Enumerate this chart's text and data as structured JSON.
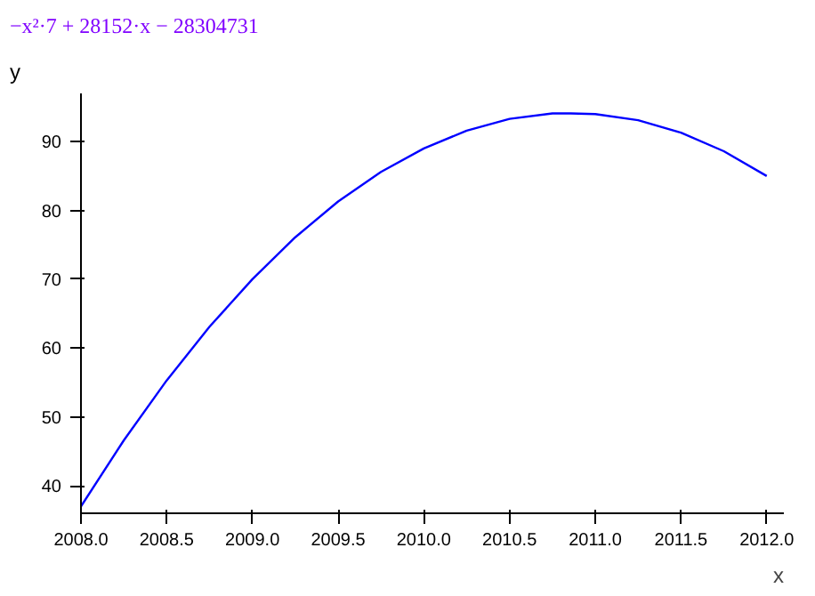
{
  "chart_data": {
    "type": "line",
    "title": "−x²·7 + 28152·x − 28304731",
    "xlabel": "x",
    "ylabel": "y",
    "x": [
      2008,
      2008.25,
      2008.5,
      2008.75,
      2009,
      2009.25,
      2009.5,
      2009.75,
      2010,
      2010.25,
      2010.5,
      2010.75,
      2010.857,
      2011,
      2011.25,
      2011.5,
      2011.75,
      2012
    ],
    "series": [
      {
        "color": "#0000ff",
        "values": [
          37.0,
          46.6,
          55.3,
          63.1,
          70.0,
          76.1,
          81.3,
          85.6,
          89.0,
          91.6,
          93.3,
          94.1,
          94.1,
          94.0,
          93.1,
          91.3,
          88.6,
          85.0
        ]
      }
    ],
    "xlim": [
      2008,
      2012.1
    ],
    "ylim": [
      36,
      97
    ],
    "xticks": [
      {
        "value": 2008,
        "label": "2008.0"
      },
      {
        "value": 2008.5,
        "label": "2008.5"
      },
      {
        "value": 2009,
        "label": "2009.0"
      },
      {
        "value": 2009.5,
        "label": "2009.5"
      },
      {
        "value": 2010,
        "label": "2010.0"
      },
      {
        "value": 2010.5,
        "label": "2010.5"
      },
      {
        "value": 2011,
        "label": "2011.0"
      },
      {
        "value": 2011.5,
        "label": "2011.5"
      },
      {
        "value": 2012,
        "label": "2012.0"
      }
    ],
    "yticks": [
      40,
      50,
      60,
      70,
      80,
      90
    ],
    "grid": false,
    "marker": "none",
    "line_style": "solid"
  }
}
